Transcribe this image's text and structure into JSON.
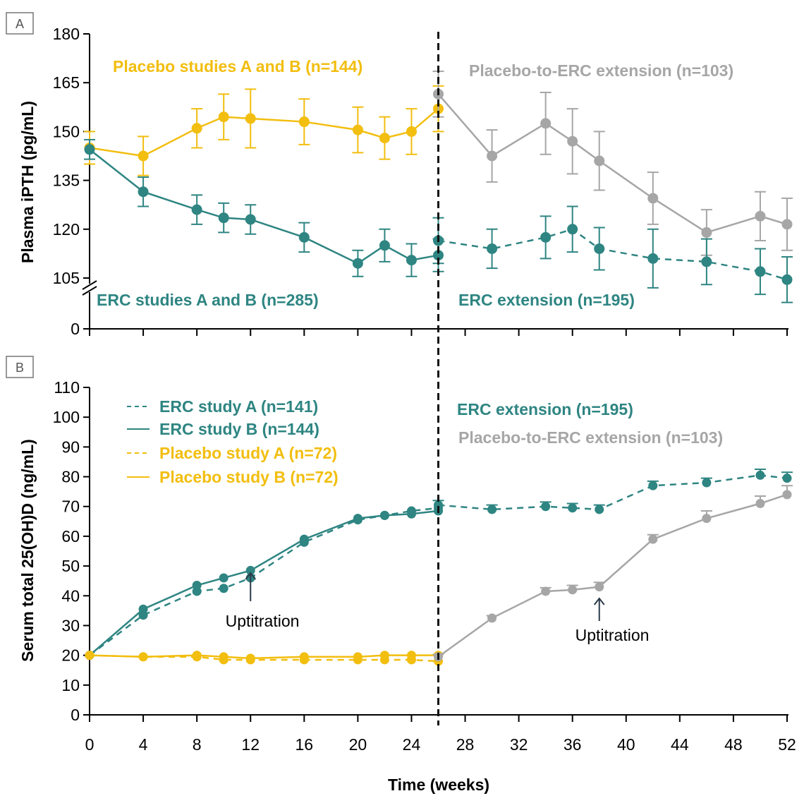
{
  "chart_data": [
    {
      "panel": "A",
      "type": "line",
      "ylabel": "Plasma iPTH (pg/mL)",
      "ylim": [
        100,
        180
      ],
      "yticks": [
        105,
        120,
        135,
        150,
        165,
        180
      ],
      "y_break_tick": 0,
      "x_range": [
        0,
        52
      ],
      "annotations": [
        {
          "text": "Placebo studies A and B (n=144)",
          "color": "#F2BE0F"
        },
        {
          "text": "Placebo-to-ERC extension (n=103)",
          "color": "#A6A6A6"
        },
        {
          "text": "ERC studies A and B (n=285)",
          "color": "#2E8582"
        },
        {
          "text": "ERC extension (n=195)",
          "color": "#2E8582"
        }
      ],
      "series": [
        {
          "key": "placebo_ab",
          "color": "#F2BE0F",
          "dash": false,
          "x": [
            0,
            4,
            8,
            10,
            12,
            16,
            20,
            22,
            24,
            26
          ],
          "y": [
            145,
            142.5,
            151,
            154.5,
            154,
            153,
            150.5,
            148,
            150,
            157
          ],
          "err": [
            5,
            6,
            6,
            7,
            9,
            7,
            7,
            6.5,
            7,
            7
          ]
        },
        {
          "key": "placebo_to_erc_ext",
          "color": "#A6A6A6",
          "dash": false,
          "x": [
            26,
            30,
            34,
            36,
            38,
            42,
            46,
            50,
            52
          ],
          "y": [
            161.5,
            142.5,
            152.5,
            147,
            141,
            129.5,
            119,
            124,
            121.5
          ],
          "err": [
            7,
            8,
            9.5,
            10,
            9,
            8,
            7,
            7.5,
            8
          ]
        },
        {
          "key": "erc_ab",
          "color": "#2E8582",
          "dash": false,
          "x": [
            0,
            4,
            8,
            10,
            12,
            16,
            20,
            22,
            24,
            26
          ],
          "y": [
            144.5,
            131.5,
            126,
            123.5,
            123,
            117.5,
            109.5,
            115,
            110.5,
            112
          ],
          "err": [
            3,
            4.5,
            4.5,
            4.5,
            4.5,
            4.5,
            4,
            5,
            5,
            5
          ]
        },
        {
          "key": "erc_ext",
          "color": "#2E8582",
          "dash": true,
          "x": [
            26,
            30,
            34,
            36,
            38,
            42,
            46,
            50,
            52
          ],
          "y": [
            116.5,
            114,
            117.5,
            120,
            114,
            111,
            110,
            107,
            104.5
          ],
          "err": [
            7,
            6,
            6.5,
            7,
            6.5,
            9,
            7,
            7,
            7
          ]
        }
      ]
    },
    {
      "panel": "B",
      "type": "line",
      "xlabel": "Time (weeks)",
      "ylabel": "Serum total 25(OH)D (ng/mL)",
      "ylim": [
        0,
        110
      ],
      "yticks": [
        0,
        10,
        20,
        30,
        40,
        50,
        60,
        70,
        80,
        90,
        100,
        110
      ],
      "xticks": [
        0,
        4,
        8,
        12,
        16,
        20,
        24,
        28,
        32,
        36,
        40,
        44,
        48,
        52
      ],
      "legend": [
        {
          "label": "ERC study A (n=141)",
          "color": "#2E8582",
          "dash": true
        },
        {
          "label": "ERC study B (n=144)",
          "color": "#2E8582",
          "dash": false
        },
        {
          "label": "Placebo study A (n=72)",
          "color": "#F2BE0F",
          "dash": true
        },
        {
          "label": "Placebo study B (n=72)",
          "color": "#F2BE0F",
          "dash": false
        }
      ],
      "annotations": [
        {
          "text": "ERC extension (n=195)",
          "color": "#2E8582"
        },
        {
          "text": "Placebo-to-ERC extension (n=103)",
          "color": "#A6A6A6"
        }
      ],
      "uptitration": [
        {
          "text": "Uptitration",
          "x": 12
        },
        {
          "text": "Uptitration",
          "x": 38
        }
      ],
      "series": [
        {
          "key": "erc_a",
          "color": "#2E8582",
          "dash": true,
          "x": [
            0,
            4,
            8,
            10,
            12,
            16,
            20,
            22,
            24,
            26
          ],
          "y": [
            20,
            33.5,
            41.5,
            42.5,
            46,
            58,
            65.5,
            67,
            68.5,
            69.5
          ]
        },
        {
          "key": "erc_b",
          "color": "#2E8582",
          "dash": false,
          "x": [
            0,
            4,
            8,
            10,
            12,
            16,
            20,
            22,
            24,
            26
          ],
          "y": [
            20,
            35.5,
            43.5,
            46,
            48.5,
            59,
            66,
            67,
            67.5,
            68.5
          ]
        },
        {
          "key": "placebo_a",
          "color": "#F2BE0F",
          "dash": true,
          "x": [
            0,
            4,
            8,
            10,
            12,
            16,
            20,
            22,
            24,
            26
          ],
          "y": [
            20,
            19.5,
            19.5,
            18.5,
            18.5,
            18.5,
            18.5,
            18.5,
            18.5,
            18
          ]
        },
        {
          "key": "placebo_b",
          "color": "#F2BE0F",
          "dash": false,
          "x": [
            0,
            4,
            8,
            10,
            12,
            16,
            20,
            22,
            24,
            26
          ],
          "y": [
            20,
            19.5,
            20,
            19.5,
            19,
            19.5,
            19.5,
            20,
            20,
            20
          ]
        },
        {
          "key": "erc_ext",
          "color": "#2E8582",
          "dash": true,
          "x": [
            26,
            30,
            34,
            36,
            38,
            42,
            46,
            50,
            52
          ],
          "y": [
            70.5,
            69,
            70,
            69.5,
            69,
            77,
            78,
            80.5,
            79.5
          ],
          "err": [
            1.5,
            1.5,
            1.5,
            1.5,
            1.5,
            1.5,
            1.5,
            2,
            2
          ]
        },
        {
          "key": "placebo_to_erc_ext",
          "color": "#A6A6A6",
          "dash": false,
          "x": [
            26,
            30,
            34,
            36,
            38,
            42,
            46,
            50,
            52
          ],
          "y": [
            19.5,
            32.5,
            41.5,
            42,
            43,
            59,
            66,
            71,
            74
          ],
          "err": [
            0.8,
            0.8,
            1.2,
            1.5,
            1.5,
            1.5,
            2.5,
            2.5,
            3
          ]
        }
      ]
    }
  ]
}
